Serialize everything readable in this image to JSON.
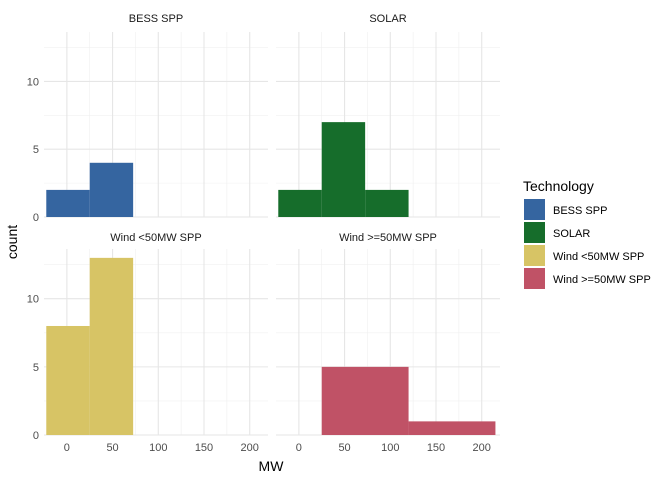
{
  "chart_data": {
    "type": "bar",
    "subtype": "faceted-histogram",
    "xlabel": "MW",
    "ylabel": "count",
    "xlim": [
      -25,
      220
    ],
    "ylim": [
      0,
      13.65
    ],
    "x_ticks": [
      0,
      50,
      100,
      150,
      200
    ],
    "y_ticks": [
      0,
      5,
      10
    ],
    "bin_width": 47.5,
    "grid": true,
    "legend": {
      "title": "Technology",
      "position": "right",
      "entries": [
        {
          "label": "BESS SPP",
          "color": "#3565A0"
        },
        {
          "label": "SOLAR",
          "color": "#166D2B"
        },
        {
          "label": "Wind <50MW SPP",
          "color": "#D7C465"
        },
        {
          "label": "Wind >=50MW SPP",
          "color": "#C05266"
        }
      ]
    },
    "facets": [
      {
        "name": "BESS SPP",
        "color": "#3565A0",
        "bins": [
          {
            "x0": -22.5,
            "x1": 25,
            "count": 2
          },
          {
            "x0": 25,
            "x1": 72.5,
            "count": 4
          }
        ]
      },
      {
        "name": "SOLAR",
        "color": "#166D2B",
        "bins": [
          {
            "x0": -22.5,
            "x1": 25,
            "count": 2
          },
          {
            "x0": 25,
            "x1": 72.5,
            "count": 7
          },
          {
            "x0": 72.5,
            "x1": 120,
            "count": 2
          }
        ]
      },
      {
        "name": "Wind <50MW SPP",
        "color": "#D7C465",
        "bins": [
          {
            "x0": -22.5,
            "x1": 25,
            "count": 8
          },
          {
            "x0": 25,
            "x1": 72.5,
            "count": 13
          }
        ]
      },
      {
        "name": "Wind >=50MW SPP",
        "color": "#C05266",
        "bins": [
          {
            "x0": 25,
            "x1": 120,
            "count": 5
          },
          {
            "x0": 120,
            "x1": 215,
            "count": 1
          }
        ]
      }
    ]
  }
}
